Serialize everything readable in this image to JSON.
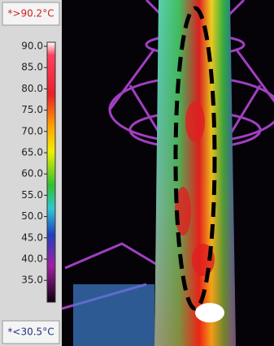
{
  "scale": {
    "max_label": "*>90.2°C",
    "min_label": "*<30.5°C",
    "ticks": [
      "90.0",
      "85.0",
      "80.0",
      "75.0",
      "70.0",
      "65.0",
      "60.0",
      "55.0",
      "50.0",
      "45.0",
      "40.0",
      "35.0"
    ]
  }
}
